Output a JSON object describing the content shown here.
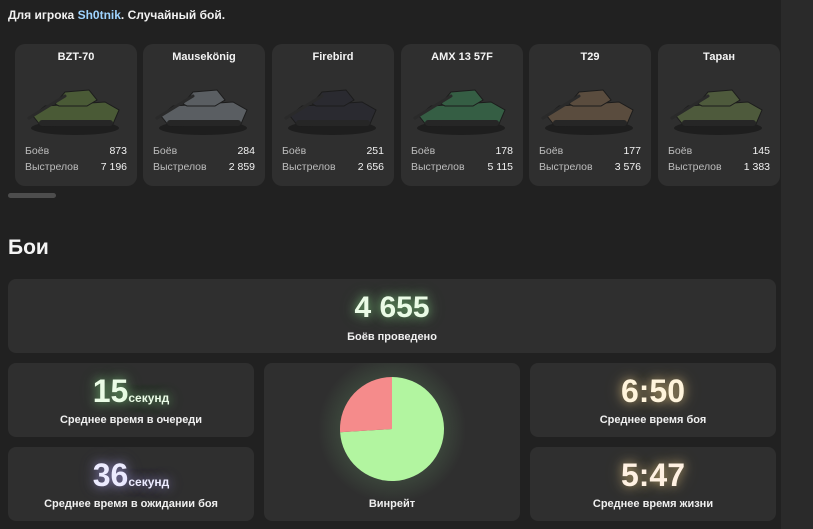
{
  "header": {
    "prefix": "Для игрока ",
    "player": "Sh0tnik",
    "suffix": ". Случайный бой."
  },
  "tanks": [
    {
      "name": "BZT-70",
      "battles_label": "Боёв",
      "battles": "873",
      "shots_label": "Выстрелов",
      "shots": "7 196",
      "color": "#4a5a36"
    },
    {
      "name": "Mausekönig",
      "battles_label": "Боёв",
      "battles": "284",
      "shots_label": "Выстрелов",
      "shots": "2 859",
      "color": "#5a5e62"
    },
    {
      "name": "Firebird",
      "battles_label": "Боёв",
      "battles": "251",
      "shots_label": "Выстрелов",
      "shots": "2 656",
      "color": "#2a2a30"
    },
    {
      "name": "AMX 13 57F",
      "battles_label": "Боёв",
      "battles": "178",
      "shots_label": "Выстрелов",
      "shots": "5 115",
      "color": "#355e44"
    },
    {
      "name": "T29",
      "battles_label": "Боёв",
      "battles": "177",
      "shots_label": "Выстрелов",
      "shots": "3 576",
      "color": "#5a4c3e"
    },
    {
      "name": "Таран",
      "battles_label": "Боёв",
      "battles": "145",
      "shots_label": "Выстрелов",
      "shots": "1 383",
      "color": "#4e5a3c"
    }
  ],
  "battles": {
    "title": "Бои",
    "total": {
      "value": "4 655",
      "label": "Боёв проведено"
    },
    "queue": {
      "value": "15",
      "unit": "секунд",
      "label": "Среднее время в очереди"
    },
    "wait": {
      "value": "36",
      "unit": "секунд",
      "label": "Среднее время в ожидании боя"
    },
    "winrate": {
      "label": "Винрейт",
      "fraction": 0.74,
      "win_color": "#b2f5a0",
      "loss_color": "#f58b8b"
    },
    "battle_time": {
      "value": "6:50",
      "label": "Среднее время боя"
    },
    "life_time": {
      "value": "5:47",
      "label": "Среднее время жизни"
    }
  }
}
